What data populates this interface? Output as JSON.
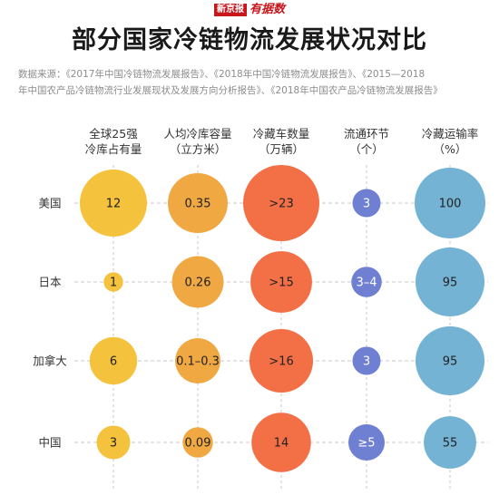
{
  "brand": {
    "logo_text": "新京报",
    "script_text": "有据数"
  },
  "title": "部分国家冷链物流发展状况对比",
  "source_lines": [
    "数据来源：《2017年中国冷链物流发展报告》、《2018年中国冷链物流发展报告》、《2015—2018",
    "年中国农产品冷链物流行业发展现状及发展方向分析报告》、《2018年中国农产品冷链物流发展报告》"
  ],
  "colors": {
    "col1": "#f5c23d",
    "col2": "#f0a843",
    "col3": "#f36f45",
    "col4": "#6f7fd1",
    "col5": "#74b3d4",
    "guideline": "#c8c8c8"
  },
  "chart_data": {
    "type": "bubble-table",
    "rows": [
      "美国",
      "日本",
      "加拿大",
      "中国"
    ],
    "columns": [
      {
        "header": [
          "全球25强",
          "冷库占有量"
        ],
        "labels": [
          "12",
          "1",
          "6",
          "3"
        ],
        "values": [
          12,
          1,
          6,
          3
        ]
      },
      {
        "header": [
          "人均冷库容量",
          "（立方米）"
        ],
        "labels": [
          "0.35",
          "0.26",
          "0.1–0.3",
          "0.09"
        ],
        "values": [
          0.35,
          0.26,
          0.2,
          0.09
        ]
      },
      {
        "header": [
          "冷藏车数量",
          "（万辆）"
        ],
        "labels": [
          ">23",
          ">15",
          ">16",
          "14"
        ],
        "values": [
          23,
          15,
          16,
          14
        ]
      },
      {
        "header": [
          "流通环节",
          "（个）"
        ],
        "labels": [
          "3",
          "3–4",
          "3",
          "≥5"
        ],
        "values": [
          3,
          3.5,
          3,
          5
        ]
      },
      {
        "header": [
          "冷藏运输率",
          "（%）"
        ],
        "labels": [
          "100",
          "95",
          "95",
          "55"
        ],
        "values": [
          100,
          95,
          95,
          55
        ]
      }
    ]
  }
}
